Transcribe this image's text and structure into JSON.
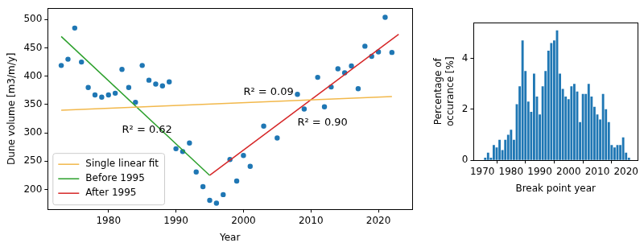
{
  "chart_data": [
    {
      "type": "scatter",
      "x_label": "Year",
      "y_label": "Dune volume [m3/m/y]",
      "xlim": [
        1971,
        2025
      ],
      "ylim": [
        165,
        520
      ],
      "xticks": [
        1980,
        1990,
        2000,
        2010,
        2020
      ],
      "yticks": [
        200,
        250,
        300,
        350,
        400,
        450,
        500
      ],
      "grid": false,
      "legend": "lower left",
      "series": [
        {
          "type": "scatter",
          "color": "#1f77b4",
          "marker": "circle",
          "x": [
            1973,
            1974,
            1975,
            1976,
            1977,
            1978,
            1979,
            1980,
            1981,
            1982,
            1983,
            1984,
            1985,
            1986,
            1987,
            1988,
            1989,
            1990,
            1991,
            1992,
            1993,
            1994,
            1995,
            1996,
            1997,
            1998,
            1999,
            2000,
            2001,
            2003,
            2005,
            2008,
            2009,
            2011,
            2012,
            2013,
            2014,
            2015,
            2016,
            2017,
            2018,
            2019,
            2020,
            2021,
            2022
          ],
          "values": [
            419,
            430,
            485,
            425,
            380,
            367,
            363,
            367,
            370,
            412,
            380,
            354,
            419,
            393,
            386,
            383,
            390,
            272,
            267,
            282,
            231,
            205,
            181,
            176,
            191,
            253,
            215,
            260,
            241,
            312,
            291,
            368,
            342,
            398,
            346,
            381,
            413,
            406,
            418,
            378,
            453,
            435,
            443,
            504,
            442
          ]
        },
        {
          "name": "Single linear fit",
          "type": "line",
          "color": "#f2b84b",
          "line_style": "solid",
          "x": [
            1973,
            2022
          ],
          "values": [
            340,
            364
          ]
        },
        {
          "name": "Before 1995",
          "type": "line",
          "color": "#2ca02c",
          "line_style": "solid",
          "x": [
            1973,
            1995
          ],
          "values": [
            470,
            225
          ]
        },
        {
          "name": "After 1995",
          "type": "line",
          "color": "#d62728",
          "line_style": "solid",
          "x": [
            1995,
            2023
          ],
          "values": [
            225,
            474
          ]
        }
      ],
      "annotations": [
        {
          "text": "R² = 0.09",
          "x": 2000,
          "y": 372
        },
        {
          "text": "R² = 0.62",
          "x": 1982,
          "y": 305
        },
        {
          "text": "R² = 0.90",
          "x": 2008,
          "y": 318
        }
      ]
    },
    {
      "type": "bar",
      "x_label": "Break point year",
      "y_label": [
        "Percentage of",
        "occurance [%]"
      ],
      "x": [
        1971,
        1972,
        1973,
        1974,
        1975,
        1976,
        1977,
        1978,
        1979,
        1980,
        1981,
        1982,
        1983,
        1984,
        1985,
        1986,
        1987,
        1988,
        1989,
        1990,
        1991,
        1992,
        1993,
        1994,
        1995,
        1996,
        1997,
        1998,
        1999,
        2000,
        2001,
        2002,
        2003,
        2004,
        2005,
        2006,
        2007,
        2008,
        2009,
        2010,
        2011,
        2012,
        2013,
        2014,
        2015,
        2016,
        2017,
        2018,
        2019,
        2020,
        2021
      ],
      "values": [
        0.1,
        0.3,
        0.1,
        0.6,
        0.5,
        0.8,
        0.4,
        0.8,
        1.0,
        1.2,
        0.8,
        2.2,
        2.9,
        4.7,
        3.5,
        2.3,
        1.9,
        3.4,
        2.5,
        1.8,
        2.9,
        3.5,
        4.3,
        4.6,
        4.7,
        5.1,
        3.4,
        2.8,
        2.5,
        2.4,
        2.9,
        3.0,
        2.7,
        1.5,
        2.6,
        2.6,
        3.0,
        2.5,
        2.1,
        1.8,
        1.6,
        2.6,
        2.0,
        1.5,
        0.6,
        0.5,
        0.6,
        0.6,
        0.9,
        0.3,
        0.1
      ],
      "color": "#1f77b4",
      "xlim": [
        1967,
        2024
      ],
      "ylim": [
        0,
        5.4
      ],
      "xticks": [
        1970,
        1980,
        1990,
        2000,
        2010,
        2020
      ],
      "yticks": [
        0,
        2,
        4
      ],
      "grid": false
    }
  ]
}
